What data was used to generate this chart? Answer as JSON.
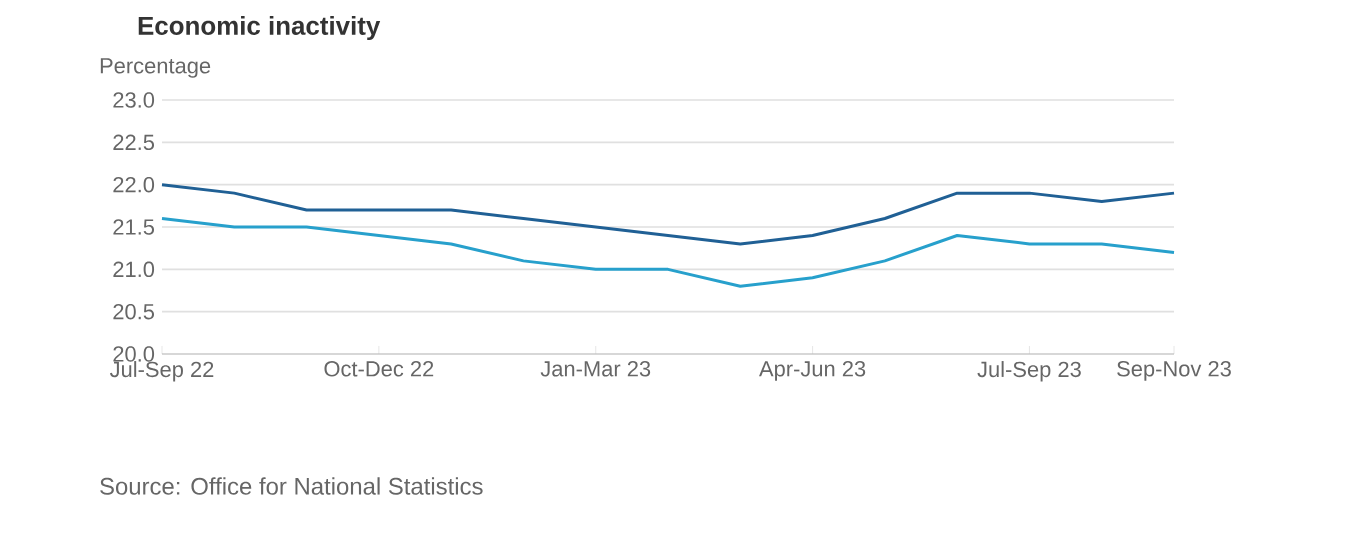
{
  "chart_data": {
    "type": "line",
    "title": "Economic inactivity",
    "ylabel": "Percentage",
    "categories": [
      "Jul-Sep 22",
      null,
      null,
      "Oct-Dec 22",
      null,
      null,
      "Jan-Mar 23",
      null,
      null,
      "Apr-Jun 23",
      null,
      null,
      "Jul-Sep 23",
      null,
      "Sep-Nov 23"
    ],
    "series": [
      {
        "color": "#206095",
        "values": [
          22.0,
          21.9,
          21.7,
          21.7,
          21.7,
          21.6,
          21.5,
          21.4,
          21.3,
          21.4,
          21.6,
          21.9,
          21.9,
          21.8,
          21.9
        ]
      },
      {
        "color": "#27a0cc",
        "values": [
          21.6,
          21.5,
          21.5,
          21.4,
          21.3,
          21.1,
          21.0,
          21.0,
          20.8,
          20.9,
          21.1,
          21.4,
          21.3,
          21.3,
          21.2
        ]
      }
    ],
    "ylim": [
      20.0,
      23.0
    ],
    "yticks": [
      {
        "value": 20.0,
        "label": "20.0"
      },
      {
        "value": 20.5,
        "label": "20.5"
      },
      {
        "value": 21.0,
        "label": "21.0"
      },
      {
        "value": 21.5,
        "label": "21.5"
      },
      {
        "value": 22.0,
        "label": "22.0"
      },
      {
        "value": 22.5,
        "label": "22.5"
      },
      {
        "value": 23.0,
        "label": "23.0"
      }
    ],
    "grid": "y",
    "annotations": [
      "Source: Office for National Statistics"
    ]
  }
}
